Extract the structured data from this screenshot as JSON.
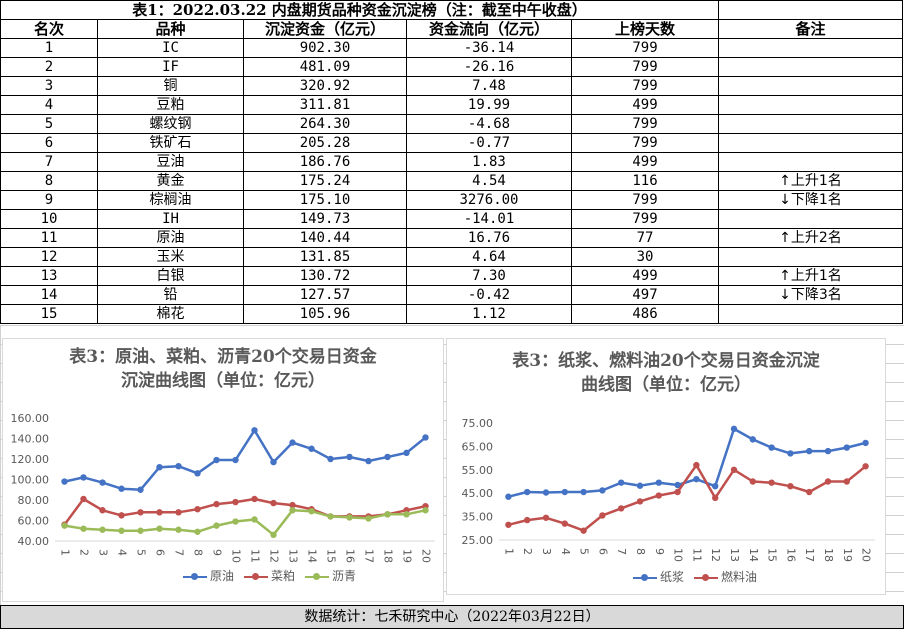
{
  "table": {
    "title": "表1：2022.03.22 内盘期货品种资金沉淀榜（注：截至中午收盘）",
    "headers": [
      "名次",
      "品种",
      "沉淀资金（亿元）",
      "资金流向（亿元）",
      "上榜天数",
      "备注"
    ],
    "rows": [
      [
        "1",
        "IC",
        "902.30",
        "-36.14",
        "799",
        ""
      ],
      [
        "2",
        "IF",
        "481.09",
        "-26.16",
        "799",
        ""
      ],
      [
        "3",
        "铜",
        "320.92",
        "7.48",
        "799",
        ""
      ],
      [
        "4",
        "豆粕",
        "311.81",
        "19.99",
        "499",
        ""
      ],
      [
        "5",
        "螺纹钢",
        "264.30",
        "-4.68",
        "799",
        ""
      ],
      [
        "6",
        "铁矿石",
        "205.28",
        "-0.77",
        "799",
        ""
      ],
      [
        "7",
        "豆油",
        "186.76",
        "1.83",
        "499",
        ""
      ],
      [
        "8",
        "黄金",
        "175.24",
        "4.54",
        "116",
        "↑上升1名"
      ],
      [
        "9",
        "棕榈油",
        "175.10",
        "3276.00",
        "799",
        "↓下降1名"
      ],
      [
        "10",
        "IH",
        "149.73",
        "-14.01",
        "799",
        ""
      ],
      [
        "11",
        "原油",
        "140.44",
        "16.76",
        "77",
        "↑上升2名"
      ],
      [
        "12",
        "玉米",
        "131.85",
        "4.64",
        "30",
        ""
      ],
      [
        "13",
        "白银",
        "130.72",
        "7.30",
        "499",
        "↑上升1名"
      ],
      [
        "14",
        "铅",
        "127.57",
        "-0.42",
        "497",
        "↓下降3名"
      ],
      [
        "15",
        "棉花",
        "105.96",
        "1.12",
        "486",
        ""
      ]
    ]
  },
  "footer": "数据统计：七禾研究中心（2022年03月22日）",
  "chart_data": [
    {
      "type": "line",
      "title_lines": [
        "表3：原油、菜粕、沥青20个交易日资金",
        "沉淀曲线图（单位：亿元）"
      ],
      "x": [
        1,
        2,
        3,
        4,
        5,
        6,
        7,
        8,
        9,
        10,
        11,
        12,
        13,
        14,
        15,
        16,
        17,
        18,
        19,
        20
      ],
      "ylim": [
        40,
        160
      ],
      "yticks": [
        "40.00",
        "60.00",
        "80.00",
        "100.00",
        "120.00",
        "140.00",
        "160.00"
      ],
      "ytick_values": [
        40,
        60,
        80,
        100,
        120,
        140,
        160
      ],
      "legend_position": "bottom",
      "grid": false,
      "series": [
        {
          "name": "原油",
          "color": "#4472c4",
          "values": [
            98,
            102,
            97,
            91,
            90,
            112,
            113,
            106,
            119,
            119,
            148,
            117,
            136,
            130,
            120,
            122,
            118,
            122,
            126,
            141
          ]
        },
        {
          "name": "菜粕",
          "color": "#c0504d",
          "values": [
            56,
            81,
            70,
            65,
            68,
            68,
            68,
            71,
            76,
            78,
            81,
            77,
            75,
            71,
            64,
            64,
            64,
            66,
            70,
            74
          ]
        },
        {
          "name": "沥青",
          "color": "#9bbb59",
          "values": [
            55,
            52,
            51,
            50,
            50,
            52,
            51,
            49,
            55,
            59,
            61,
            46,
            70,
            69,
            64,
            63,
            62,
            66,
            66,
            70
          ]
        }
      ]
    },
    {
      "type": "line",
      "title_lines": [
        "表3：纸浆、燃料油20个交易日资金沉淀",
        "曲线图（单位：亿元）"
      ],
      "x": [
        1,
        2,
        3,
        4,
        5,
        6,
        7,
        8,
        9,
        10,
        11,
        12,
        13,
        14,
        15,
        16,
        17,
        18,
        19,
        20
      ],
      "ylim": [
        25,
        75
      ],
      "yticks": [
        "25.00",
        "35.00",
        "45.00",
        "55.00",
        "65.00",
        "75.00"
      ],
      "ytick_values": [
        25,
        35,
        45,
        55,
        65,
        75
      ],
      "legend_position": "bottom",
      "grid": false,
      "series": [
        {
          "name": "纸浆",
          "color": "#4472c4",
          "values": [
            43.5,
            45.5,
            45.3,
            45.5,
            45.5,
            46.2,
            49.5,
            48.2,
            49.5,
            48.5,
            51,
            48,
            72.5,
            68,
            64.5,
            62,
            63,
            63,
            64.5,
            66.5
          ]
        },
        {
          "name": "燃料油",
          "color": "#c0504d",
          "values": [
            31.5,
            33.5,
            34.5,
            32,
            29,
            35.5,
            38.5,
            41.5,
            44,
            45.5,
            57,
            43,
            55,
            50,
            49.5,
            48,
            45.5,
            50,
            50,
            56.5
          ]
        }
      ]
    }
  ]
}
